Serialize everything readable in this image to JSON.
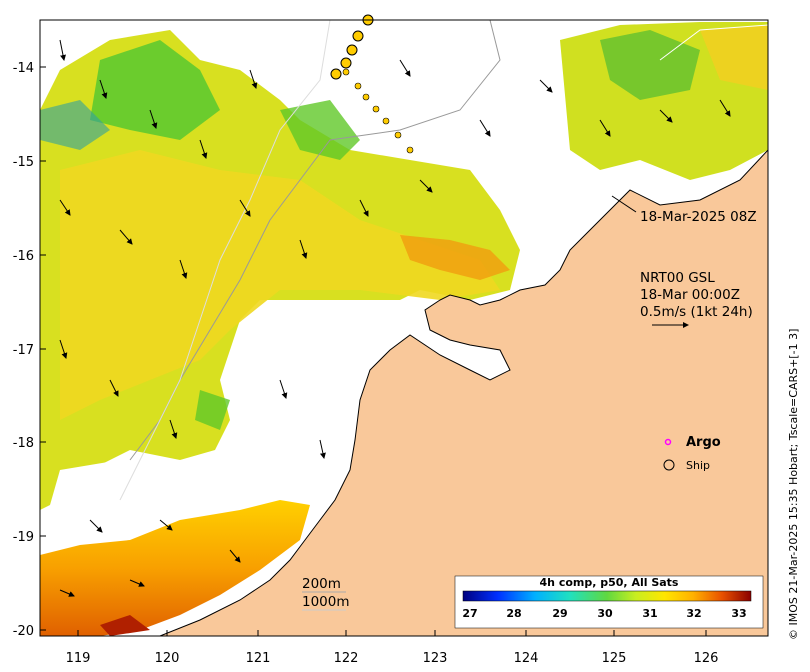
{
  "map": {
    "y_ticks": [
      "-14",
      "-15",
      "-16",
      "-17",
      "-18",
      "-19",
      "-20"
    ],
    "x_ticks": [
      "119",
      "120",
      "121",
      "122",
      "123",
      "124",
      "125",
      "126"
    ]
  },
  "annotations": {
    "timestamp_label": "18-Mar-2025 08Z",
    "current_title": "NRT00 GSL",
    "current_time": "18-Mar 00:00Z",
    "current_scale": "0.5m/s (1kt 24h)"
  },
  "legend": {
    "argo_label": "Argo",
    "ship_label": "Ship",
    "argo_color": "#ff00ff"
  },
  "depth_legend": {
    "contour_200": "200m",
    "contour_1000": "1000m"
  },
  "colorbar": {
    "title": "4h comp, p50, All Sats",
    "ticks": [
      "27",
      "28",
      "29",
      "30",
      "31",
      "32",
      "33"
    ]
  },
  "credit": "© IMOS 21-Mar-2025 15:35 Hobart; Tscale=CARS+[-1 3]",
  "colors": {
    "land": "#f9c89a",
    "ship_track": "#ffcc00"
  }
}
